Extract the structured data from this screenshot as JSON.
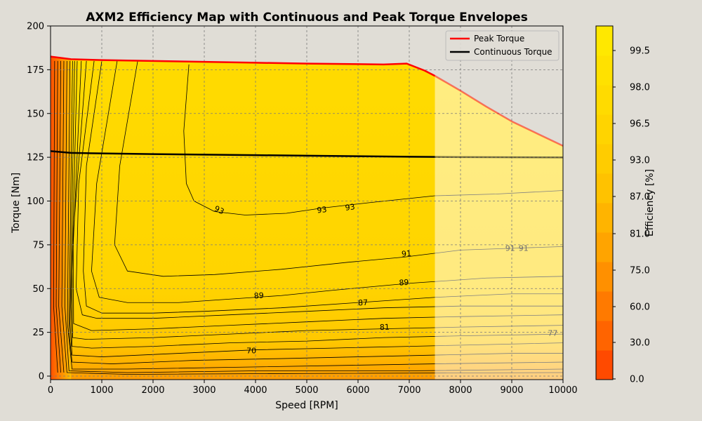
{
  "chart_data": {
    "type": "contour",
    "title": "AXM2 Efficiency Map with Continuous and Peak Torque Envelopes",
    "xlabel": "Speed [RPM]",
    "ylabel": "Torque [Nm]",
    "xlim": [
      0,
      10000
    ],
    "ylim": [
      -2,
      200
    ],
    "xticks": [
      0,
      1000,
      2000,
      3000,
      4000,
      5000,
      6000,
      7000,
      8000,
      9000,
      10000
    ],
    "xtick_labels": [
      "0",
      "1000",
      "2000",
      "3000",
      "4000",
      "5000",
      "6000",
      "7000",
      "8000",
      "9000",
      "10000"
    ],
    "yticks": [
      0,
      25,
      50,
      75,
      100,
      125,
      150,
      175,
      200
    ],
    "ytick_labels": [
      "0",
      "25",
      "50",
      "75",
      "100",
      "125",
      "150",
      "175",
      "200"
    ],
    "grid": true,
    "legend": {
      "placement": "top-right",
      "entries": [
        {
          "name": "Peak Torque",
          "color": "#ff0000"
        },
        {
          "name": "Continuous Torque",
          "color": "#000000"
        }
      ]
    },
    "colorbar": {
      "label": "Efficiency [%]",
      "tick_labels": [
        "0.0",
        "30.0",
        "60.0",
        "75.0",
        "81.0",
        "87.0",
        "93.0",
        "96.5",
        "98.0",
        "99.5"
      ],
      "colors": [
        "#ff4a00",
        "#ff6400",
        "#ff7a00",
        "#ff9000",
        "#ffa400",
        "#ffb400",
        "#ffc200",
        "#ffcc00",
        "#ffd400",
        "#ffdb00",
        "#ffe100",
        "#ffe800"
      ]
    },
    "extrapolated_region": {
      "x_start": 7500,
      "x_end": 10000
    },
    "series": [
      {
        "name": "Peak Torque",
        "color": "#ff0000",
        "x": [
          0,
          400,
          1000,
          2000,
          3000,
          4000,
          5000,
          6000,
          6500,
          6950,
          7300,
          7500,
          8000,
          8500,
          9000,
          9500,
          10000
        ],
        "y": [
          182.5,
          181,
          180.5,
          180,
          179.5,
          179,
          178.5,
          178.2,
          178,
          178.5,
          174.5,
          171.5,
          163,
          154,
          145.5,
          138.5,
          131.5
        ]
      },
      {
        "name": "Continuous Torque",
        "color": "#000000",
        "x": [
          0,
          400,
          1000,
          2000,
          3000,
          4000,
          5000,
          6000,
          7000,
          7500,
          8000,
          9000,
          10000
        ],
        "y": [
          128.5,
          127.5,
          127.2,
          126.8,
          126.5,
          126.2,
          125.9,
          125.6,
          125.3,
          125.2,
          125.1,
          125,
          124.9
        ]
      }
    ],
    "contour_labels": [
      {
        "text": "93",
        "x": 3270,
        "y": 93.5,
        "rot": 25
      },
      {
        "text": "93",
        "x": 5300,
        "y": 93.5,
        "rot": -6
      },
      {
        "text": "93",
        "x": 5850,
        "y": 95,
        "rot": -7
      },
      {
        "text": "91",
        "x": 6950,
        "y": 68.5,
        "rot": -5
      },
      {
        "text": "91",
        "x": 8970,
        "y": 71.5,
        "rot": 0
      },
      {
        "text": "91",
        "x": 9230,
        "y": 71.5,
        "rot": 0
      },
      {
        "text": "89",
        "x": 4070,
        "y": 44.5,
        "rot": -5
      },
      {
        "text": "89",
        "x": 6900,
        "y": 52,
        "rot": -4
      },
      {
        "text": "87",
        "x": 6100,
        "y": 40.5,
        "rot": -3
      },
      {
        "text": "81",
        "x": 6520,
        "y": 26.5,
        "rot": -2
      },
      {
        "text": "77",
        "x": 9800,
        "y": 23,
        "rot": 0
      },
      {
        "text": "70",
        "x": 3920,
        "y": 13,
        "rot": 0
      }
    ]
  }
}
